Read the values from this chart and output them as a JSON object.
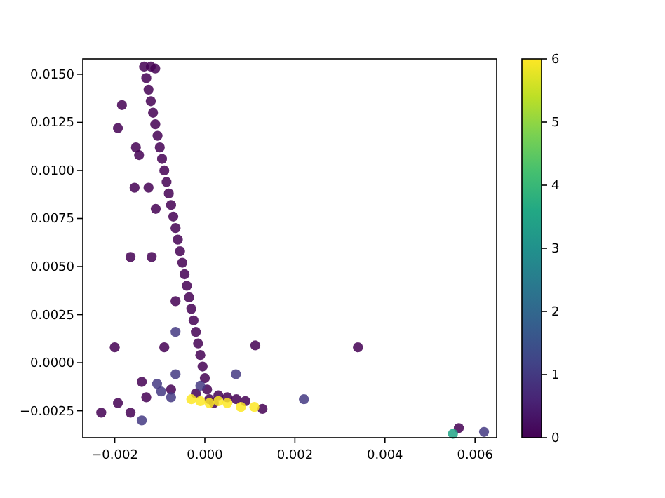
{
  "chart_data": {
    "type": "scatter",
    "marker": "circle",
    "grid": false,
    "xlim": [
      -0.00271,
      0.00648
    ],
    "ylim": [
      -0.0039,
      0.0158
    ],
    "xticks": [
      {
        "value": -0.002,
        "label": "−0.002"
      },
      {
        "value": 0,
        "label": "0.000"
      },
      {
        "value": 0.002,
        "label": "0.002"
      },
      {
        "value": 0.004,
        "label": "0.004"
      },
      {
        "value": 0.006,
        "label": "0.006"
      }
    ],
    "yticks": [
      {
        "value": -0.0025,
        "label": "−0.0025"
      },
      {
        "value": 0,
        "label": "0.0000"
      },
      {
        "value": 0.0025,
        "label": "0.0025"
      },
      {
        "value": 0.005,
        "label": "0.0050"
      },
      {
        "value": 0.0075,
        "label": "0.0075"
      },
      {
        "value": 0.01,
        "label": "0.0100"
      },
      {
        "value": 0.0125,
        "label": "0.0125"
      },
      {
        "value": 0.015,
        "label": "0.0150"
      }
    ],
    "clim": [
      0,
      6
    ],
    "cticks": [
      0,
      1,
      2,
      3,
      4,
      5,
      6
    ],
    "x": [
      -0.00135,
      -0.0013,
      -0.00125,
      -0.0012,
      -0.00115,
      -0.0011,
      -0.00105,
      -0.001,
      -0.00095,
      -0.0009,
      -0.00085,
      -0.0008,
      -0.00075,
      -0.0007,
      -0.00065,
      -0.0006,
      -0.00055,
      -0.0005,
      -0.00045,
      -0.0004,
      -0.00035,
      -0.0003,
      -0.00025,
      -0.0002,
      -0.00015,
      -0.0001,
      -5e-05,
      0,
      5e-05,
      0.0001,
      -0.0012,
      -0.0011,
      -0.00184,
      -0.00193,
      -0.00153,
      -0.00146,
      -0.00156,
      -0.00125,
      -0.00109,
      -0.00165,
      -0.00118,
      -0.00065,
      -0.00065,
      -0.0009,
      -0.002,
      0.00112,
      0.00069,
      -0.00065,
      -0.0014,
      -0.00106,
      -0.0013,
      -0.00097,
      -0.00075,
      -0.00075,
      -0.00193,
      -0.0023,
      -0.00165,
      -0.0014,
      0.00128,
      0.0034,
      0.0022,
      0.00564,
      0.00551,
      0.0062,
      0.0003,
      0.0005,
      0.0007,
      -0.0002,
      0.0002,
      0.0009,
      -0.0001,
      -0.0003,
      -0.0001,
      0.0001,
      0.0003,
      0.0005,
      0.0008,
      0.0011
    ],
    "values": [
      0.0154,
      0.0148,
      0.0142,
      0.0136,
      0.013,
      0.0124,
      0.0118,
      0.0112,
      0.0106,
      0.01,
      0.0094,
      0.0088,
      0.0082,
      0.0076,
      0.007,
      0.0064,
      0.0058,
      0.0052,
      0.0046,
      0.004,
      0.0034,
      0.0028,
      0.0022,
      0.0016,
      0.001,
      0.0004,
      -0.0002,
      -0.0008,
      -0.0014,
      -0.0019,
      0.0154,
      0.0153,
      0.0134,
      0.0122,
      0.0112,
      0.0108,
      0.0091,
      0.0091,
      0.008,
      0.0055,
      0.0055,
      0.0032,
      0.0016,
      0.0008,
      0.0008,
      0.0009,
      -0.0006,
      -0.0006,
      -0.001,
      -0.0011,
      -0.0018,
      -0.0015,
      -0.0014,
      -0.0018,
      -0.0021,
      -0.0026,
      -0.0026,
      -0.003,
      -0.0024,
      0.0008,
      -0.0019,
      -0.0034,
      -0.0037,
      -0.0036,
      -0.0017,
      -0.0018,
      -0.0019,
      -0.0016,
      -0.0021,
      -0.002,
      -0.0012,
      -0.0019,
      -0.002,
      -0.0021,
      -0.002,
      -0.0021,
      -0.0023,
      -0.0023
    ],
    "cvalues": [
      0,
      0,
      0,
      0,
      0,
      0,
      0,
      0,
      0,
      0,
      0,
      0,
      0,
      0,
      0,
      0,
      0,
      0,
      0,
      0,
      0,
      0,
      0,
      0,
      0,
      0,
      0,
      0,
      0,
      0,
      0,
      0,
      0,
      0,
      0,
      0,
      0,
      0,
      0,
      0,
      0,
      0,
      1,
      0,
      0,
      0,
      1,
      1,
      0,
      1,
      0,
      1,
      0,
      1,
      0,
      0,
      0,
      1,
      0,
      0,
      1,
      0,
      3.5,
      1,
      0,
      0,
      0,
      0,
      0,
      0,
      1,
      6,
      6,
      6,
      6,
      6,
      6,
      6
    ]
  }
}
